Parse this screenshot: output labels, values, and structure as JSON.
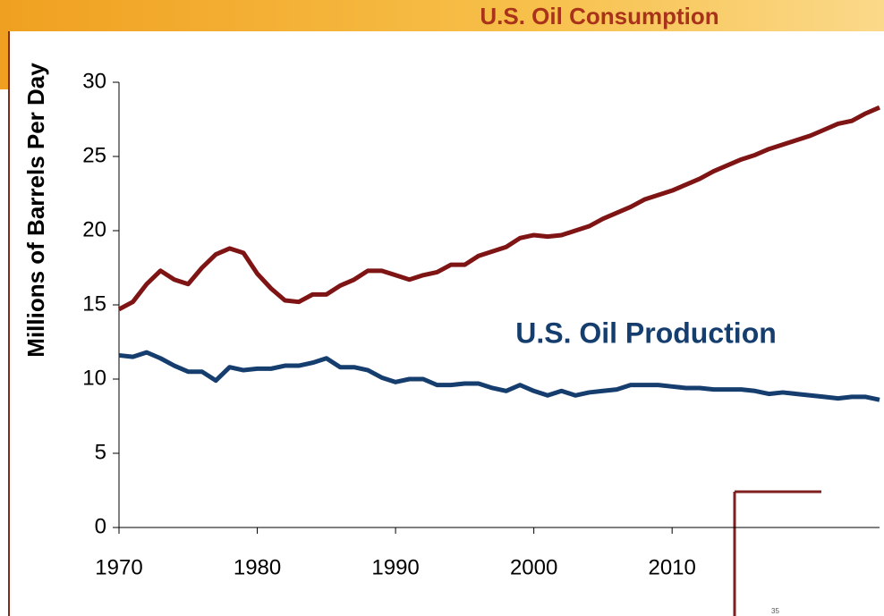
{
  "chart_data": {
    "type": "line",
    "axis_label": "Millions of Barrels Per Day",
    "x": [
      1970,
      1971,
      1972,
      1973,
      1974,
      1975,
      1976,
      1977,
      1978,
      1979,
      1980,
      1981,
      1982,
      1983,
      1984,
      1985,
      1986,
      1987,
      1988,
      1989,
      1990,
      1991,
      1992,
      1993,
      1994,
      1995,
      1996,
      1997,
      1998,
      1999,
      2000,
      2001,
      2002,
      2003,
      2004,
      2005,
      2006,
      2007,
      2008,
      2009,
      2010,
      2011,
      2012,
      2013,
      2014,
      2015,
      2016,
      2017,
      2018,
      2019,
      2020,
      2021,
      2022,
      2023,
      2024,
      2025
    ],
    "series": [
      {
        "name": "U.S. Oil Consumption",
        "color": "#7f1414",
        "values": [
          14.7,
          15.2,
          16.4,
          17.3,
          16.7,
          16.4,
          17.5,
          18.4,
          18.8,
          18.5,
          17.1,
          16.1,
          15.3,
          15.2,
          15.7,
          15.7,
          16.3,
          16.7,
          17.3,
          17.3,
          17.0,
          16.7,
          17.0,
          17.2,
          17.7,
          17.7,
          18.3,
          18.6,
          18.9,
          19.5,
          19.7,
          19.6,
          19.7,
          20.0,
          20.3,
          20.8,
          21.2,
          21.6,
          22.1,
          22.4,
          22.7,
          23.1,
          23.5,
          24.0,
          24.4,
          24.8,
          25.1,
          25.5,
          25.8,
          26.1,
          26.4,
          26.8,
          27.2,
          27.4,
          27.9,
          28.3
        ]
      },
      {
        "name": "U.S. Oil Production",
        "color": "#153e6e",
        "values": [
          11.6,
          11.5,
          11.8,
          11.4,
          10.9,
          10.5,
          10.5,
          9.9,
          10.8,
          10.6,
          10.7,
          10.7,
          10.9,
          10.9,
          11.1,
          11.4,
          10.8,
          10.8,
          10.6,
          10.1,
          9.8,
          10.0,
          10.0,
          9.6,
          9.6,
          9.7,
          9.7,
          9.4,
          9.2,
          9.6,
          9.2,
          8.9,
          9.2,
          8.9,
          9.1,
          9.2,
          9.3,
          9.6,
          9.6,
          9.6,
          9.5,
          9.4,
          9.4,
          9.3,
          9.3,
          9.3,
          9.2,
          9.0,
          9.1,
          9.0,
          8.9,
          8.8,
          8.7,
          8.8,
          8.8,
          8.6
        ]
      }
    ],
    "xlim": [
      1970,
      2025
    ],
    "xticks": [
      1970,
      1980,
      1990,
      2000,
      2010
    ],
    "ylim": [
      0,
      30
    ],
    "yticks": [
      0,
      5,
      10,
      15,
      20,
      25,
      30
    ],
    "inset_label": "35"
  }
}
